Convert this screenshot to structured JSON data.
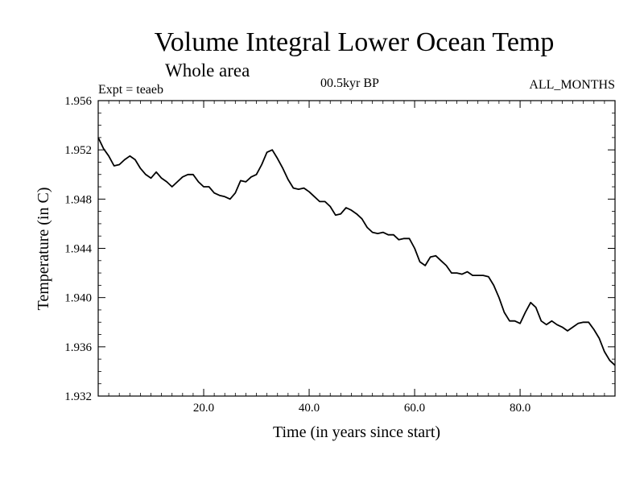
{
  "chart_data": {
    "type": "line",
    "title": "Volume Integral Lower Ocean Temp",
    "subtitle": "Whole area",
    "expt_label": "Expt = teaeb",
    "period_label": "00.5kyr BP",
    "months_label": "ALL_MONTHS",
    "xlabel": "Time (in years since start)",
    "ylabel": "Temperature (in C)",
    "xlim": [
      0,
      98
    ],
    "ylim": [
      1.932,
      1.956
    ],
    "x_ticks": [
      20,
      40,
      60,
      80
    ],
    "x_tick_labels": [
      "20.0",
      "40.0",
      "60.0",
      "80.0"
    ],
    "y_ticks": [
      1.932,
      1.936,
      1.94,
      1.944,
      1.948,
      1.952,
      1.956
    ],
    "y_tick_labels": [
      "1.932",
      "1.936",
      "1.940",
      "1.944",
      "1.948",
      "1.952",
      "1.956"
    ],
    "series": [
      {
        "name": "Temperature",
        "x": [
          0,
          1,
          2,
          3,
          4,
          5,
          6,
          7,
          8,
          9,
          10,
          11,
          12,
          13,
          14,
          15,
          16,
          17,
          18,
          19,
          20,
          21,
          22,
          23,
          24,
          25,
          26,
          27,
          28,
          29,
          30,
          31,
          32,
          33,
          34,
          35,
          36,
          37,
          38,
          39,
          40,
          41,
          42,
          43,
          44,
          45,
          46,
          47,
          48,
          49,
          50,
          51,
          52,
          53,
          54,
          55,
          56,
          57,
          58,
          59,
          60,
          61,
          62,
          63,
          64,
          65,
          66,
          67,
          68,
          69,
          70,
          71,
          72,
          73,
          74,
          75,
          76,
          77,
          78,
          79,
          80,
          81,
          82,
          83,
          84,
          85,
          86,
          87,
          88,
          89,
          90,
          91,
          92,
          93,
          94,
          95,
          96,
          97,
          98
        ],
        "values": [
          1.953,
          1.9521,
          1.9515,
          1.9507,
          1.9508,
          1.9512,
          1.9515,
          1.9512,
          1.9505,
          1.95,
          1.9497,
          1.9502,
          1.9497,
          1.9494,
          1.949,
          1.9494,
          1.9498,
          1.95,
          1.95,
          1.9494,
          1.949,
          1.949,
          1.9485,
          1.9483,
          1.9482,
          1.948,
          1.9485,
          1.9495,
          1.9494,
          1.9498,
          1.95,
          1.9508,
          1.9518,
          1.952,
          1.9513,
          1.9505,
          1.9496,
          1.9489,
          1.9488,
          1.9489,
          1.9486,
          1.9482,
          1.9478,
          1.9478,
          1.9474,
          1.9467,
          1.9468,
          1.9473,
          1.9471,
          1.9468,
          1.9464,
          1.9457,
          1.9453,
          1.9452,
          1.9453,
          1.9451,
          1.9451,
          1.9447,
          1.9448,
          1.9448,
          1.944,
          1.9429,
          1.9426,
          1.9433,
          1.9434,
          1.943,
          1.9426,
          1.942,
          1.942,
          1.9419,
          1.9421,
          1.9418,
          1.9418,
          1.9418,
          1.9417,
          1.941,
          1.94,
          1.9388,
          1.9381,
          1.9381,
          1.9379,
          1.9388,
          1.9396,
          1.9392,
          1.9381,
          1.9378,
          1.9381,
          1.9378,
          1.9376,
          1.9373,
          1.9376,
          1.9379,
          1.938,
          1.938,
          1.9374,
          1.9367,
          1.9356,
          1.9349,
          1.9345
        ]
      }
    ]
  }
}
